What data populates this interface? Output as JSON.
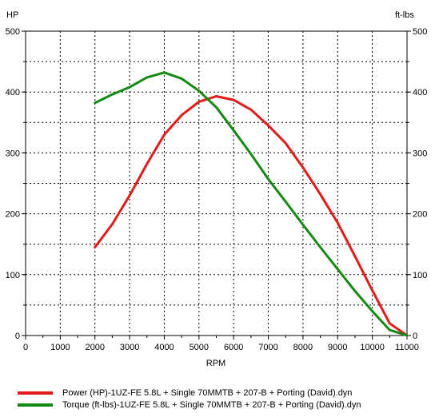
{
  "chart_data": {
    "type": "line",
    "xlabel": "RPM",
    "ylabel_left": "HP",
    "ylabel_right": "ft-lbs",
    "xlim": [
      0,
      11000
    ],
    "ylim": [
      0,
      500
    ],
    "x_ticks": [
      0,
      1000,
      2000,
      3000,
      4000,
      5000,
      6000,
      7000,
      8000,
      9000,
      10000,
      11000
    ],
    "y_ticks": [
      0,
      100,
      200,
      300,
      400,
      500
    ],
    "grid": true,
    "legend_position": "bottom",
    "series": [
      {
        "name": "Power (HP)-1UZ-FE 5.8L + Single 70MMTB + 207-B + Porting (David).dyn",
        "color": "#e31b1b",
        "x": [
          2000,
          2500,
          3000,
          3500,
          4000,
          4500,
          5000,
          5500,
          6000,
          6500,
          7000,
          7500,
          8000,
          8500,
          9000,
          9500,
          10000,
          10500,
          11000
        ],
        "y": [
          145,
          183,
          230,
          282,
          330,
          362,
          384,
          393,
          387,
          371,
          345,
          316,
          276,
          232,
          185,
          130,
          74,
          20,
          0
        ]
      },
      {
        "name": "Torque (ft-lbs)-1UZ-FE 5.8L + Single 70MMTB + 207-B + Porting (David).dyn",
        "color": "#138a13",
        "x": [
          2000,
          2500,
          3000,
          3500,
          4000,
          4500,
          5000,
          5500,
          6000,
          6500,
          7000,
          7500,
          8000,
          8500,
          9000,
          9500,
          10000,
          10500,
          11000
        ],
        "y": [
          382,
          396,
          408,
          424,
          432,
          422,
          402,
          375,
          337,
          298,
          257,
          220,
          182,
          145,
          109,
          73,
          40,
          9,
          0
        ]
      }
    ]
  }
}
